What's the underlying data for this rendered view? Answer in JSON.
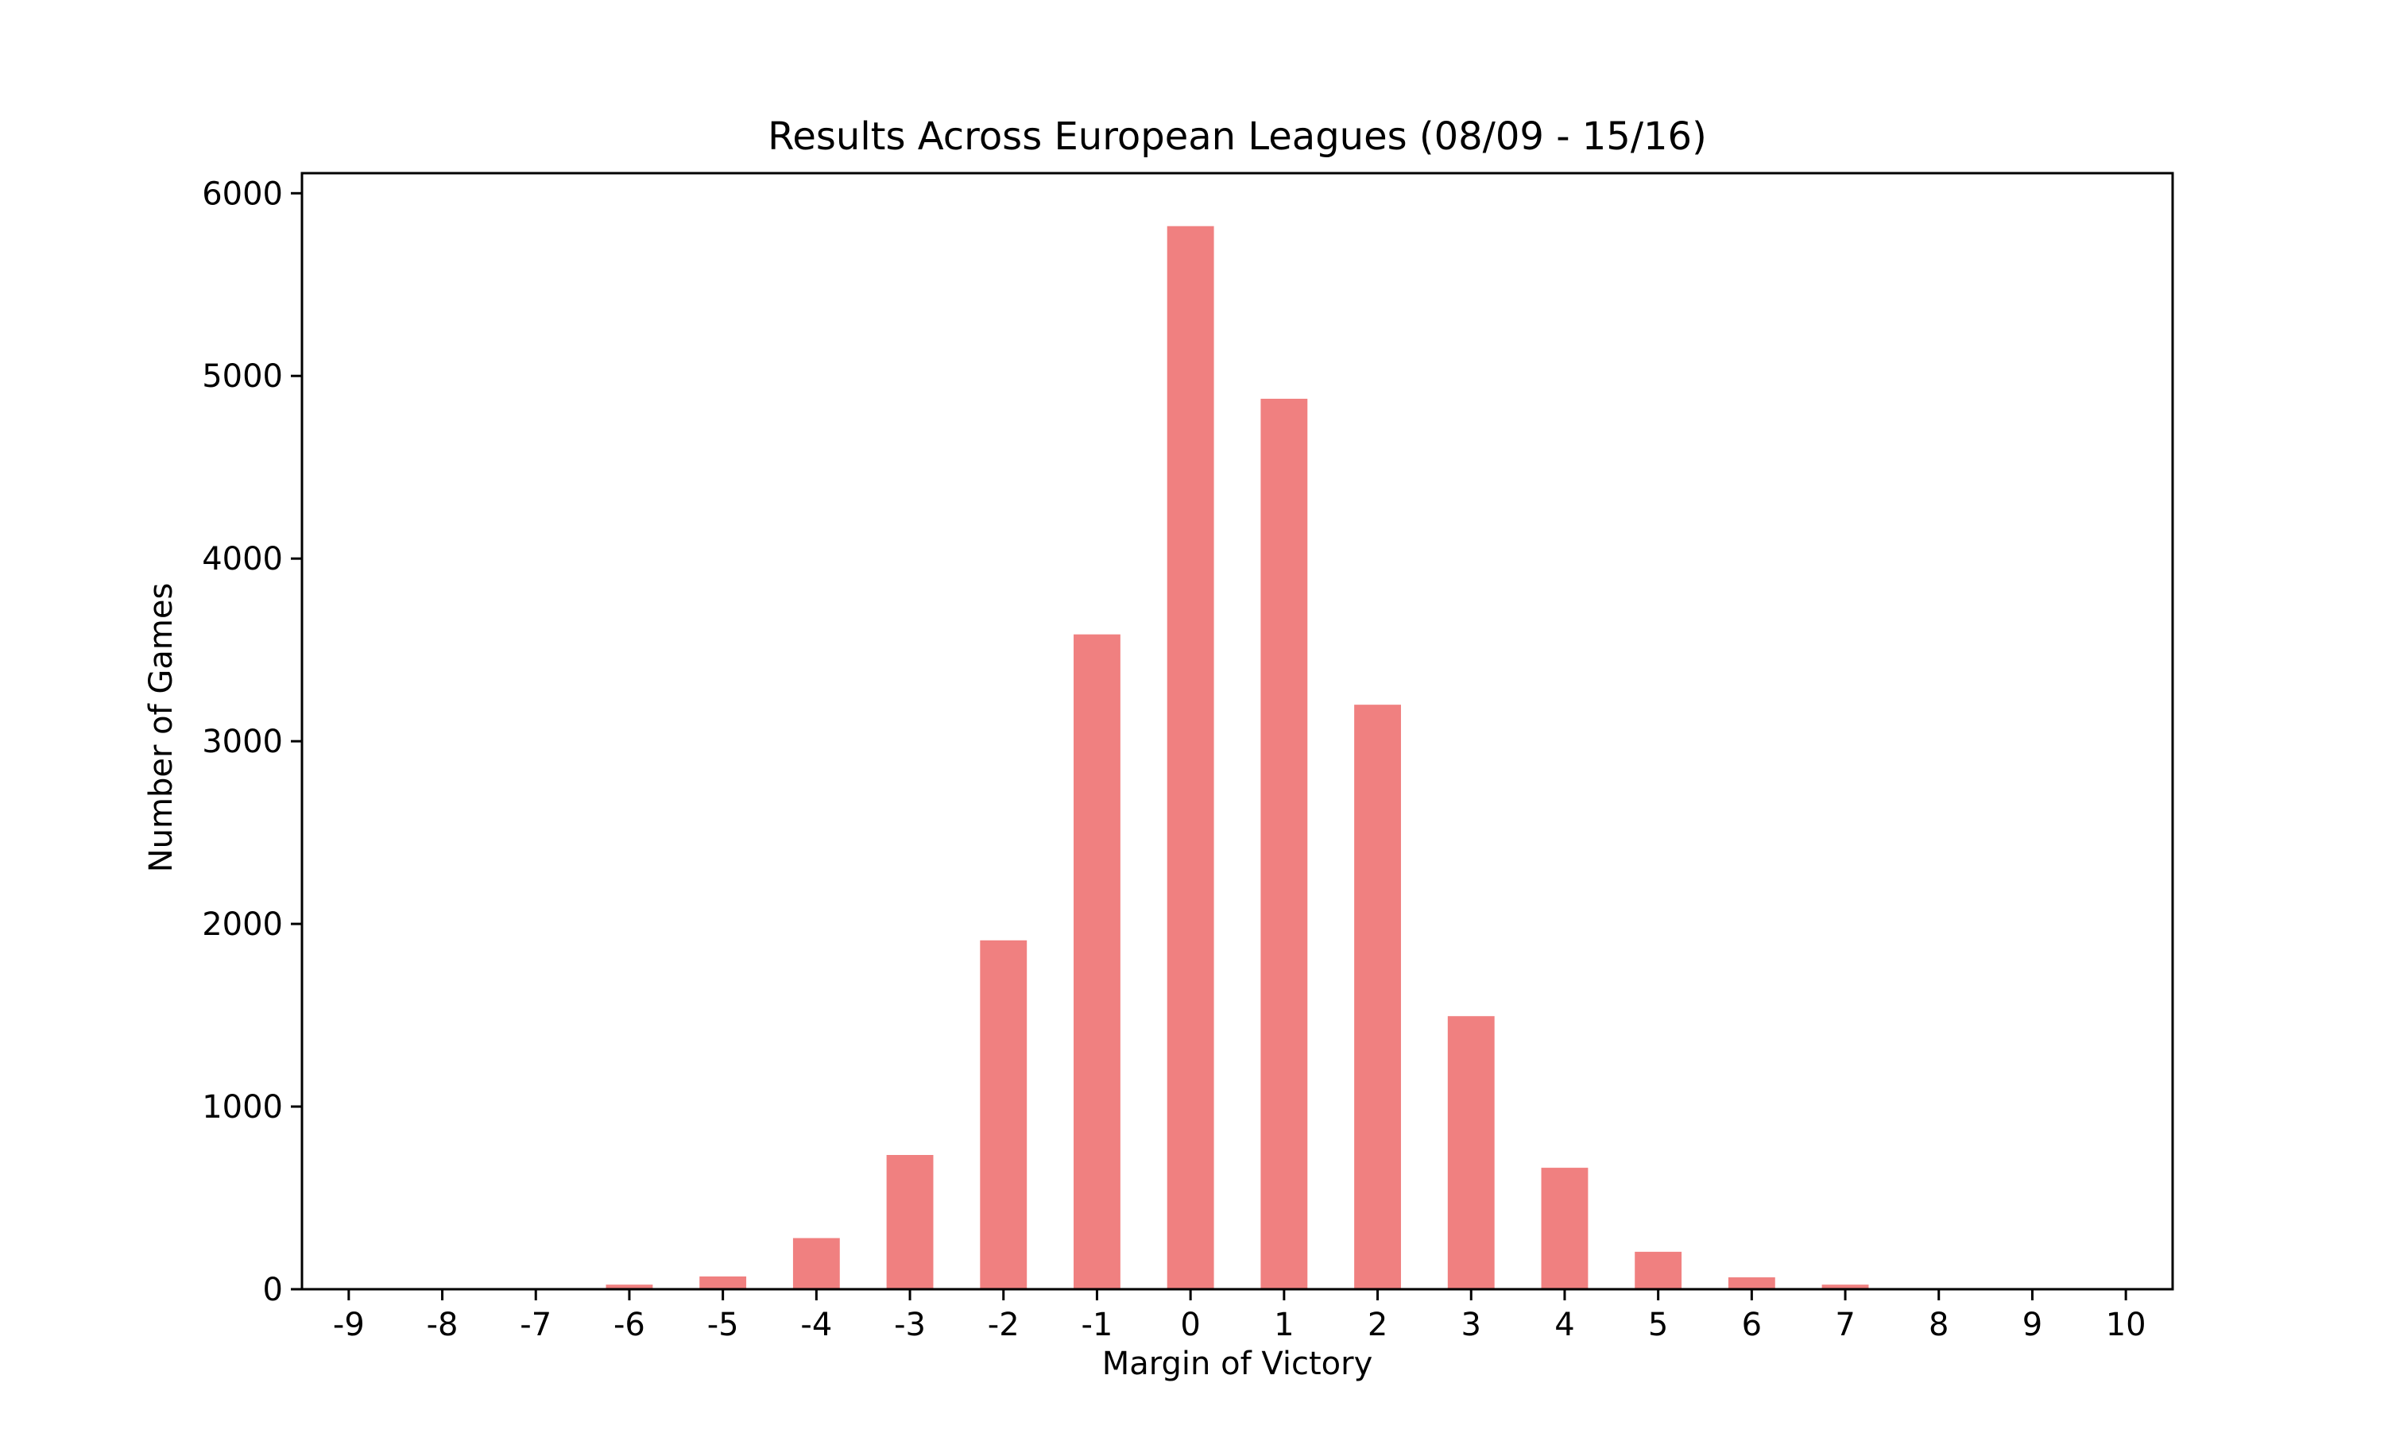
{
  "chart_data": {
    "type": "bar",
    "title": "Results Across European Leagues (08/09 - 15/16)",
    "xlabel": "Margin of Victory",
    "ylabel": "Number of Games",
    "categories": [
      "-9",
      "-8",
      "-7",
      "-6",
      "-5",
      "-4",
      "-3",
      "-2",
      "-1",
      "0",
      "1",
      "2",
      "3",
      "4",
      "5",
      "6",
      "7",
      "8",
      "9",
      "10"
    ],
    "values": [
      2,
      3,
      5,
      25,
      70,
      280,
      735,
      1910,
      3585,
      5820,
      4875,
      3200,
      1495,
      665,
      205,
      65,
      25,
      5,
      3,
      2
    ],
    "yticks": [
      0,
      1000,
      2000,
      3000,
      4000,
      5000,
      6000
    ],
    "ylim": [
      0,
      6110
    ],
    "xlim": [
      -9.5,
      10.5
    ],
    "grid": false,
    "legend": "none",
    "colors": {
      "bar": "#f08080",
      "axis": "#000000",
      "background": "#ffffff"
    }
  }
}
